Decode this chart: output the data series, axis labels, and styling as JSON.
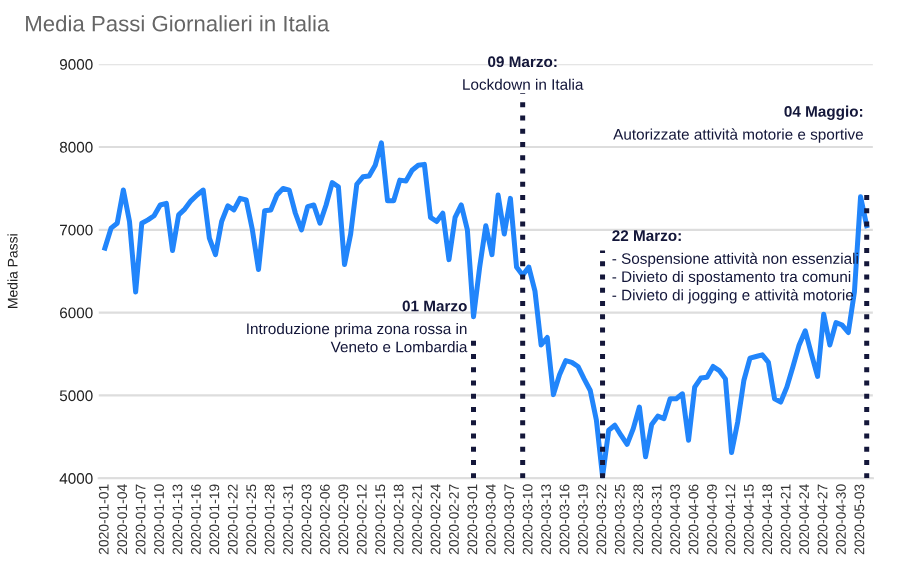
{
  "chart_data": {
    "type": "line",
    "title": "Media Passi Giornalieri in Italia",
    "ylabel": "Media Passi",
    "x": [
      "2020-01-01",
      "2020-01-02",
      "2020-01-03",
      "2020-01-04",
      "2020-01-05",
      "2020-01-06",
      "2020-01-07",
      "2020-01-08",
      "2020-01-09",
      "2020-01-10",
      "2020-01-11",
      "2020-01-12",
      "2020-01-13",
      "2020-01-14",
      "2020-01-15",
      "2020-01-16",
      "2020-01-17",
      "2020-01-18",
      "2020-01-19",
      "2020-01-20",
      "2020-01-21",
      "2020-01-22",
      "2020-01-23",
      "2020-01-24",
      "2020-01-25",
      "2020-01-26",
      "2020-01-27",
      "2020-01-28",
      "2020-01-29",
      "2020-01-30",
      "2020-01-31",
      "2020-02-01",
      "2020-02-02",
      "2020-02-03",
      "2020-02-04",
      "2020-02-05",
      "2020-02-06",
      "2020-02-07",
      "2020-02-08",
      "2020-02-09",
      "2020-02-10",
      "2020-02-11",
      "2020-02-12",
      "2020-02-13",
      "2020-02-14",
      "2020-02-15",
      "2020-02-16",
      "2020-02-17",
      "2020-02-18",
      "2020-02-19",
      "2020-02-20",
      "2020-02-21",
      "2020-02-22",
      "2020-02-23",
      "2020-02-24",
      "2020-02-25",
      "2020-02-26",
      "2020-02-27",
      "2020-02-28",
      "2020-02-29",
      "2020-03-01",
      "2020-03-02",
      "2020-03-03",
      "2020-03-04",
      "2020-03-05",
      "2020-03-06",
      "2020-03-07",
      "2020-03-08",
      "2020-03-09",
      "2020-03-10",
      "2020-03-11",
      "2020-03-12",
      "2020-03-13",
      "2020-03-14",
      "2020-03-15",
      "2020-03-16",
      "2020-03-17",
      "2020-03-18",
      "2020-03-19",
      "2020-03-20",
      "2020-03-21",
      "2020-03-22",
      "2020-03-23",
      "2020-03-24",
      "2020-03-25",
      "2020-03-26",
      "2020-03-27",
      "2020-03-28",
      "2020-03-29",
      "2020-03-30",
      "2020-03-31",
      "2020-04-01",
      "2020-04-02",
      "2020-04-03",
      "2020-04-04",
      "2020-04-05",
      "2020-04-06",
      "2020-04-07",
      "2020-04-08",
      "2020-04-09",
      "2020-04-10",
      "2020-04-11",
      "2020-04-12",
      "2020-04-13",
      "2020-04-14",
      "2020-04-15",
      "2020-04-16",
      "2020-04-17",
      "2020-04-18",
      "2020-04-19",
      "2020-04-20",
      "2020-04-21",
      "2020-04-22",
      "2020-04-23",
      "2020-04-24",
      "2020-04-25",
      "2020-04-26",
      "2020-04-27",
      "2020-04-28",
      "2020-04-29",
      "2020-04-30",
      "2020-05-01",
      "2020-05-02",
      "2020-05-03",
      "2020-05-04"
    ],
    "series": [
      {
        "color": "#2185fb",
        "values": [
          6780,
          7020,
          7080,
          7480,
          7100,
          6250,
          7080,
          7120,
          7170,
          7300,
          7320,
          6750,
          7180,
          7250,
          7350,
          7420,
          7480,
          6900,
          6700,
          7100,
          7290,
          7240,
          7380,
          7360,
          7000,
          6520,
          7230,
          7240,
          7420,
          7500,
          7480,
          7200,
          7000,
          7280,
          7300,
          7080,
          7300,
          7570,
          7520,
          6580,
          6950,
          7550,
          7640,
          7650,
          7780,
          8050,
          7350,
          7350,
          7600,
          7590,
          7720,
          7780,
          7790,
          7150,
          7100,
          7200,
          6640,
          7150,
          7300,
          7000,
          5950,
          6550,
          7050,
          6700,
          7420,
          6950,
          7380,
          6550,
          6450,
          6550,
          6260,
          5610,
          5700,
          5010,
          5250,
          5420,
          5400,
          5350,
          5200,
          5060,
          4700,
          4020,
          4580,
          4640,
          4520,
          4410,
          4600,
          4860,
          4260,
          4650,
          4750,
          4720,
          4960,
          4960,
          5020,
          4460,
          5100,
          5210,
          5220,
          5350,
          5300,
          5200,
          4310,
          4680,
          5180,
          5450,
          5470,
          5490,
          5400,
          4960,
          4920,
          5100,
          5350,
          5610,
          5780,
          5500,
          5230,
          5980,
          5610,
          5880,
          5850,
          5760,
          6250,
          7400,
          7050
        ]
      }
    ],
    "xlim": [
      "2019-12-31",
      "2020-05-05"
    ],
    "xticks": [
      "2020-01-01",
      "2020-01-04",
      "2020-01-07",
      "2020-01-10",
      "2020-01-13",
      "2020-01-16",
      "2020-01-19",
      "2020-01-22",
      "2020-01-25",
      "2020-01-28",
      "2020-01-31",
      "2020-02-03",
      "2020-02-06",
      "2020-02-09",
      "2020-02-12",
      "2020-02-15",
      "2020-02-18",
      "2020-02-21",
      "2020-02-24",
      "2020-02-27",
      "2020-03-01",
      "2020-03-04",
      "2020-03-07",
      "2020-03-10",
      "2020-03-13",
      "2020-03-16",
      "2020-03-19",
      "2020-03-22",
      "2020-03-25",
      "2020-03-28",
      "2020-03-31",
      "2020-04-03",
      "2020-04-06",
      "2020-04-09",
      "2020-04-12",
      "2020-04-15",
      "2020-04-18",
      "2020-04-21",
      "2020-04-24",
      "2020-04-27",
      "2020-04-30",
      "2020-05-03"
    ],
    "ylim": [
      4000,
      9000
    ],
    "yticks": [
      4000,
      5000,
      6000,
      7000,
      8000,
      9000
    ],
    "grid": "y",
    "legend": false,
    "marker": "none",
    "line_style": "solid",
    "ref_lines": [
      {
        "axis": "x",
        "value": "2020-03-01",
        "label": "01 Marzo\nIntroduzione prima zona rossa in\nVeneto e Lombardia",
        "color": "#14173a",
        "line_style": "dotted"
      },
      {
        "axis": "x",
        "value": "2020-03-09",
        "label": "09 Marzo:\nLockdown in Italia",
        "color": "#14173a",
        "line_style": "dotted"
      },
      {
        "axis": "x",
        "value": "2020-03-22",
        "label": "22 Marzo:\n- Sospensione attività non essenziali\n- Divieto di spostamento tra comuni\n- Divieto di jogging e attività motorie",
        "color": "#14173a",
        "line_style": "dotted"
      },
      {
        "axis": "x",
        "value": "2020-05-04",
        "label": "04 Maggio:\nAutorizzate attività motorie e sportive",
        "color": "#14173a",
        "line_style": "dotted"
      }
    ]
  }
}
